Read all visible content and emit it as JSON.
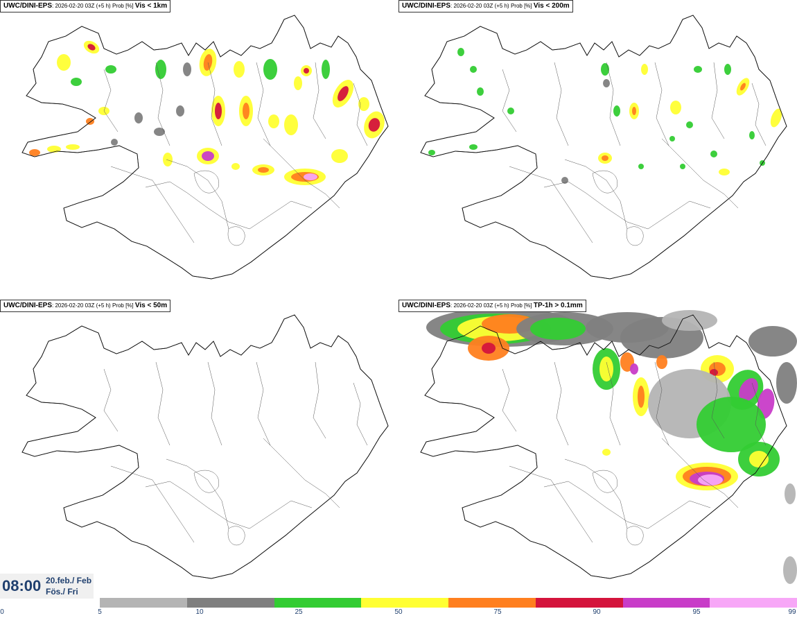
{
  "panels": [
    {
      "model": "UWC/DINI-EPS",
      "run": ": 2026-02-20 03Z (+5 h) Prob [%]",
      "threshold": "Vis < 1km"
    },
    {
      "model": "UWC/DINI-EPS",
      "run": ": 2026-02-20 03Z (+5 h) Prob [%]",
      "threshold": "Vis < 200m"
    },
    {
      "model": "UWC/DINI-EPS",
      "run": ": 2026-02-20 03Z (+5 h) Prob [%]",
      "threshold": "Vis < 50m"
    },
    {
      "model": "UWC/DINI-EPS",
      "run": ": 2026-02-20 03Z (+5 h) Prob [%]",
      "threshold": "TP-1h > 0.1mm"
    }
  ],
  "valid_time": {
    "time": "08:00",
    "date_line1": "20.feb./ Feb",
    "date_line2": "Fös./ Fri"
  },
  "colorbar": {
    "ticks": [
      "0",
      "5",
      "10",
      "25",
      "50",
      "75",
      "90",
      "95",
      "99"
    ],
    "colors": [
      "#b4b4b4",
      "#7f7f7f",
      "#33cc33",
      "#ffff33",
      "#ff7f1f",
      "#d4143c",
      "#c83cc8",
      "#f7a7f7"
    ]
  }
}
